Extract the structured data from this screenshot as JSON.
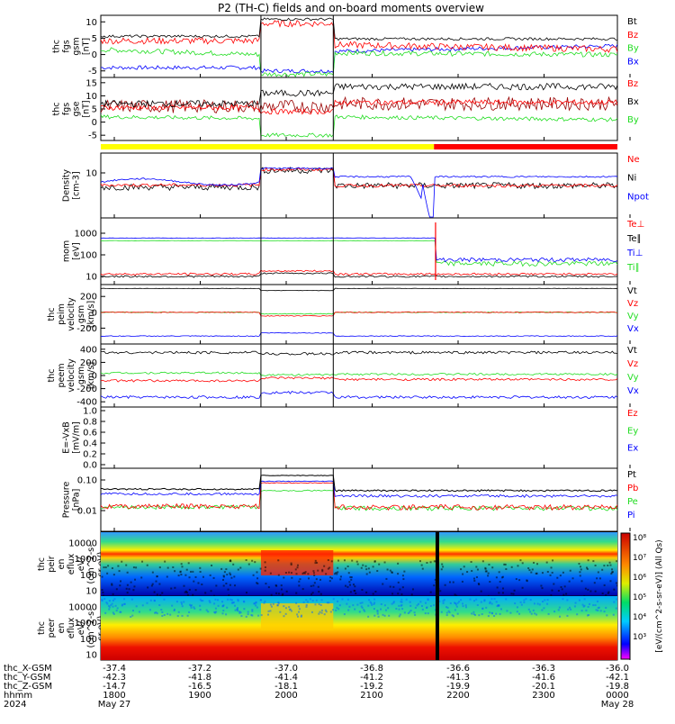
{
  "title": "P2 (TH-C) fields and on-board moments overview",
  "colors": {
    "black": "#000000",
    "red": "#ff0000",
    "green": "#22dd22",
    "blue": "#0000ff",
    "darkred": "#990000",
    "yellow": "#ffff00"
  },
  "panels": [
    {
      "id": "fgs-gsm",
      "ylabel": [
        "thc",
        "fgs",
        "gsm",
        "[nT]"
      ],
      "yticks": [
        "10",
        "5",
        "0",
        "-5"
      ],
      "ytick_vals": [
        10,
        5,
        0,
        -5
      ],
      "ylim": [
        -7,
        12
      ],
      "legend": [
        {
          "t": "Bt",
          "c": "black"
        },
        {
          "t": "Bz",
          "c": "red"
        },
        {
          "t": "By",
          "c": "green"
        },
        {
          "t": "Bx",
          "c": "blue"
        }
      ]
    },
    {
      "id": "fgs-gse",
      "ylabel": [
        "thc",
        "fgs",
        "gse",
        "[nT]"
      ],
      "yticks": [
        "15",
        "10",
        "5",
        "0",
        "-5"
      ],
      "ytick_vals": [
        15,
        10,
        5,
        0,
        -5
      ],
      "ylim": [
        -7,
        17
      ],
      "legend": [
        {
          "t": "Bz",
          "c": "red"
        },
        {
          "t": "Bx",
          "c": "black"
        },
        {
          "t": "By",
          "c": "green"
        }
      ]
    },
    {
      "id": "density",
      "ylabel": [
        "Density",
        "[cm-3]"
      ],
      "yticks": [
        "10"
      ],
      "ytick_vals": [
        10
      ],
      "ylim": [
        0,
        1
      ],
      "legend": [
        {
          "t": "Ne",
          "c": "red"
        },
        {
          "t": "Ni",
          "c": "black"
        },
        {
          "t": "Npot",
          "c": "blue"
        }
      ]
    },
    {
      "id": "temperature",
      "ylabel": [
        "mom",
        "[eV]"
      ],
      "yticks": [
        "1000",
        "100",
        "10"
      ],
      "ytick_vals": [
        1000,
        100,
        10
      ],
      "ylim": [
        0,
        1
      ],
      "legend": [
        {
          "t": "Te⊥",
          "c": "red"
        },
        {
          "t": "Te∥",
          "c": "black"
        },
        {
          "t": "Ti⊥",
          "c": "blue"
        },
        {
          "t": "Ti∥",
          "c": "green"
        }
      ]
    },
    {
      "id": "ion-velocity",
      "ylabel": [
        "thc",
        "peim",
        "velocity",
        "gsm",
        "[km/s]"
      ],
      "yticks": [
        "200",
        "0",
        "-200"
      ],
      "ytick_vals": [
        200,
        0,
        -200
      ],
      "ylim": [
        -400,
        350
      ],
      "legend": [
        {
          "t": "Vt",
          "c": "black"
        },
        {
          "t": "Vz",
          "c": "red"
        },
        {
          "t": "Vy",
          "c": "green"
        },
        {
          "t": "Vx",
          "c": "blue"
        }
      ]
    },
    {
      "id": "elec-velocity",
      "ylabel": [
        "thc",
        "peem",
        "velocity",
        "gsm",
        "[km/s]"
      ],
      "yticks": [
        "400",
        "200",
        "0",
        "-200",
        "-400"
      ],
      "ytick_vals": [
        400,
        200,
        0,
        -200,
        -400
      ],
      "ylim": [
        -480,
        480
      ],
      "legend": [
        {
          "t": "Vt",
          "c": "black"
        },
        {
          "t": "Vz",
          "c": "red"
        },
        {
          "t": "Vy",
          "c": "green"
        },
        {
          "t": "Vx",
          "c": "blue"
        }
      ]
    },
    {
      "id": "efield",
      "ylabel": [
        "E=-VxB",
        "[mV/m]"
      ],
      "yticks": [
        "1.0",
        "0.8",
        "0.6",
        "0.4",
        "0.2",
        "0.0"
      ],
      "ytick_vals": [
        1,
        0.8,
        0.6,
        0.4,
        0.2,
        0
      ],
      "ylim": [
        0,
        1
      ],
      "legend": [
        {
          "t": "Ez",
          "c": "red"
        },
        {
          "t": "Ey",
          "c": "green"
        },
        {
          "t": "Ex",
          "c": "blue"
        }
      ]
    },
    {
      "id": "pressure",
      "ylabel": [
        "Pressure",
        "[nPa]"
      ],
      "yticks": [
        "0.10",
        "0.01"
      ],
      "ytick_vals": [
        0.1,
        0.01
      ],
      "ylim": [
        0,
        1
      ],
      "legend": [
        {
          "t": "Pt",
          "c": "black"
        },
        {
          "t": "Pb",
          "c": "red"
        },
        {
          "t": "Pe",
          "c": "green"
        },
        {
          "t": "Pi",
          "c": "blue"
        }
      ]
    },
    {
      "id": "ion-spec",
      "ylabel": [
        "thc",
        "peir",
        "en",
        "eflux",
        "eV/",
        "(cm^2-s-",
        "sr-eV)"
      ],
      "yticks": [
        "10000",
        "1000",
        "100",
        "10"
      ],
      "ytick_vals": [
        10000,
        1000,
        100,
        10
      ],
      "ylim": [
        0,
        1
      ]
    },
    {
      "id": "elec-spec",
      "ylabel": [
        "thc",
        "peer",
        "en",
        "eflux",
        "eV/",
        "(cm^2-s-",
        "sr-eV)"
      ],
      "yticks": [
        "10000",
        "1000",
        "100",
        "10"
      ],
      "ytick_vals": [
        10000,
        1000,
        100,
        10
      ],
      "ylim": [
        0,
        1
      ]
    }
  ],
  "colorbar": {
    "labels": [
      "10⁸",
      "10⁷",
      "10⁶",
      "10⁵",
      "10⁴",
      "10³"
    ],
    "title": "[eV/(cm^2-s-sr-eV)] (All Qs)"
  },
  "xaxis": {
    "rows": [
      {
        "label": "thc_X-GSM",
        "values": [
          "-37.4",
          "-37.2",
          "-37.0",
          "-36.8",
          "-36.6",
          "-36.3",
          "-36.0"
        ]
      },
      {
        "label": "thc_Y-GSM",
        "values": [
          "-42.3",
          "-41.8",
          "-41.4",
          "-41.2",
          "-41.3",
          "-41.6",
          "-42.1"
        ]
      },
      {
        "label": "thc_Z-GSM",
        "values": [
          "-14.7",
          "-16.5",
          "-18.1",
          "-19.2",
          "-19.9",
          "-20.1",
          "-19.8"
        ]
      },
      {
        "label": "hhmm",
        "values": [
          "1800",
          "1900",
          "2000",
          "2100",
          "2200",
          "2300",
          "0000"
        ]
      },
      {
        "label": "2024",
        "values": [
          "May 27",
          "",
          "",
          "",
          "",
          "",
          "May 28"
        ]
      }
    ]
  },
  "chart_data": {
    "type": "line",
    "title": "P2 (TH-C) fields and on-board moments overview",
    "x": [
      "1800",
      "1900",
      "2000",
      "2100",
      "2200",
      "2300",
      "0000"
    ],
    "series": [
      {
        "name": "Bt",
        "panel": "fgs-gsm",
        "values": [
          5.5,
          6,
          10.5,
          4.5,
          5.5,
          5,
          4.5
        ]
      },
      {
        "name": "Bz",
        "panel": "fgs-gsm",
        "values": [
          4,
          5,
          9.5,
          3,
          2,
          1,
          0.5
        ]
      },
      {
        "name": "By",
        "panel": "fgs-gsm",
        "values": [
          1.5,
          0.5,
          -6,
          1,
          0,
          -1,
          -1
        ]
      },
      {
        "name": "Bx",
        "panel": "fgs-gsm",
        "values": [
          -4,
          -3,
          -5,
          -1,
          2,
          3,
          3
        ]
      },
      {
        "name": "Bt",
        "panel": "fgs-gse",
        "values": [
          6.5,
          7.5,
          11,
          14,
          13,
          13,
          14
        ]
      },
      {
        "name": "Bx",
        "panel": "fgs-gse",
        "values": [
          5.5,
          6,
          6,
          7,
          7,
          7,
          7
        ]
      },
      {
        "name": "By",
        "panel": "fgs-gse",
        "values": [
          2,
          1,
          -5,
          3,
          1,
          0,
          0
        ]
      },
      {
        "name": "Vt",
        "panel": "elec-velocity",
        "values": [
          350,
          350,
          330,
          350,
          350,
          350,
          350
        ]
      },
      {
        "name": "Vz",
        "panel": "elec-velocity",
        "values": [
          -80,
          -70,
          -40,
          -70,
          -50,
          -50,
          -50
        ]
      },
      {
        "name": "Vy",
        "panel": "elec-velocity",
        "values": [
          40,
          30,
          10,
          20,
          20,
          20,
          20
        ]
      },
      {
        "name": "Vx",
        "panel": "elec-velocity",
        "values": [
          -330,
          -330,
          -260,
          -330,
          -330,
          -320,
          -320
        ]
      },
      {
        "name": "Vt",
        "panel": "ion-velocity",
        "values": [
          300,
          305,
          270,
          300,
          300,
          300,
          300
        ]
      },
      {
        "name": "Vz",
        "panel": "ion-velocity",
        "values": [
          0,
          0,
          -40,
          0,
          0,
          0,
          0
        ]
      },
      {
        "name": "Vy",
        "panel": "ion-velocity",
        "values": [
          0,
          0,
          -10,
          0,
          0,
          0,
          0
        ]
      },
      {
        "name": "Vx",
        "panel": "ion-velocity",
        "values": [
          -300,
          -300,
          -260,
          -300,
          -300,
          -300,
          -300
        ]
      }
    ]
  }
}
